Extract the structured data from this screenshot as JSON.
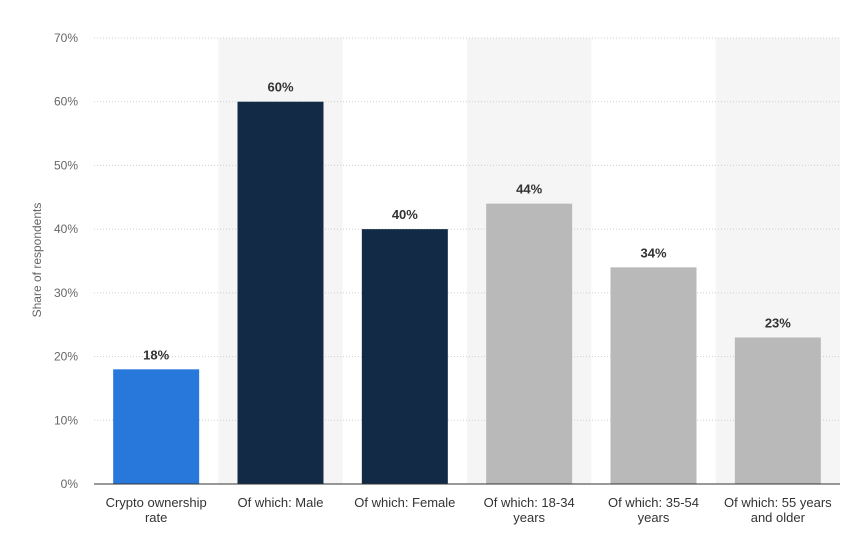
{
  "chart_data": {
    "type": "bar",
    "ylabel": "Share of respondents",
    "ylim": [
      0,
      70
    ],
    "yticks": [
      "0%",
      "10%",
      "20%",
      "30%",
      "40%",
      "50%",
      "60%",
      "70%"
    ],
    "ytick_values": [
      0,
      10,
      20,
      30,
      40,
      50,
      60,
      70
    ],
    "grid": true,
    "categories": [
      [
        "Crypto ownership",
        "rate"
      ],
      [
        "Of which: Male"
      ],
      [
        "Of which: Female"
      ],
      [
        "Of which: 18-34",
        "years"
      ],
      [
        "Of which: 35-54",
        "years"
      ],
      [
        "Of which: 55 years",
        "and older"
      ]
    ],
    "values": [
      18,
      60,
      40,
      44,
      34,
      23
    ],
    "data_labels": [
      "18%",
      "60%",
      "40%",
      "44%",
      "34%",
      "23%"
    ],
    "bar_colors": [
      "#2878dc",
      "#122a45",
      "#122a45",
      "#b9b9b9",
      "#b9b9b9",
      "#b9b9b9"
    ],
    "band_shading": "#f5f5f5"
  }
}
